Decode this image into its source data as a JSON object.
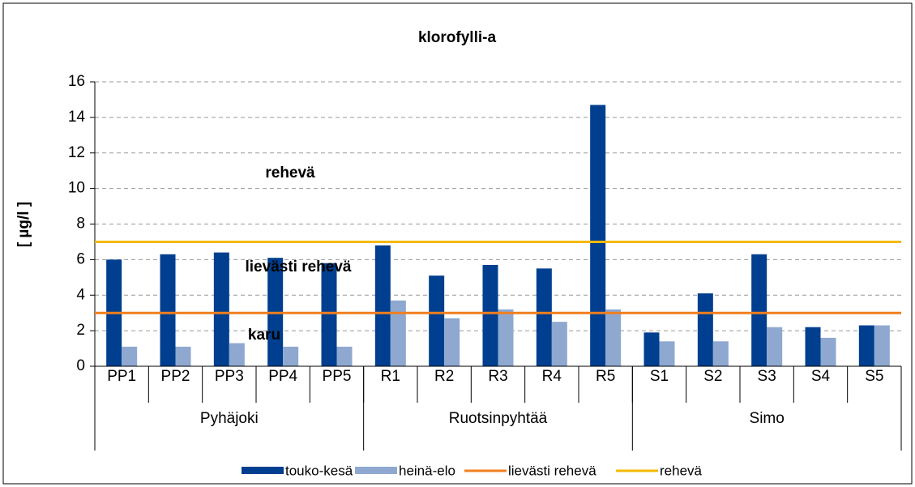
{
  "chart_data": {
    "type": "bar",
    "title": "klorofylli-a",
    "y_label": "[ µg/l ]",
    "groups": [
      {
        "name": "Pyhäjoki",
        "categories": [
          "PP1",
          "PP2",
          "PP3",
          "PP4",
          "PP5"
        ]
      },
      {
        "name": "Ruotsinpyhtää",
        "categories": [
          "R1",
          "R2",
          "R3",
          "R4",
          "R5"
        ]
      },
      {
        "name": "Simo",
        "categories": [
          "S1",
          "S2",
          "S3",
          "S4",
          "S5"
        ]
      }
    ],
    "series": [
      {
        "name": "touko-kesä",
        "type": "bar",
        "color": "#003f8f",
        "values": [
          6.0,
          6.3,
          6.4,
          6.1,
          5.8,
          6.8,
          5.1,
          5.7,
          5.5,
          14.7,
          1.9,
          4.1,
          6.3,
          2.2,
          2.3
        ]
      },
      {
        "name": "heinä-elo",
        "type": "bar",
        "color": "#8ea8d0",
        "values": [
          1.1,
          1.1,
          1.3,
          1.1,
          1.1,
          3.7,
          2.7,
          3.2,
          2.5,
          3.2,
          1.4,
          1.4,
          2.2,
          1.6,
          2.3
        ]
      },
      {
        "name": "lievästi rehevä",
        "type": "line",
        "color": "#f07f1e",
        "values": [
          3,
          3,
          3,
          3,
          3,
          3,
          3,
          3,
          3,
          3,
          3,
          3,
          3,
          3,
          3
        ]
      },
      {
        "name": "rehevä",
        "type": "line",
        "color": "#f5b800",
        "values": [
          7,
          7,
          7,
          7,
          7,
          7,
          7,
          7,
          7,
          7,
          7,
          7,
          7,
          7,
          7
        ]
      }
    ],
    "annotations": [
      "rehevä",
      "lievästi rehevä",
      "karu"
    ],
    "ylim": [
      0,
      16
    ],
    "yticks": [
      0,
      2,
      4,
      6,
      8,
      10,
      12,
      14,
      16
    ],
    "grid": true
  }
}
